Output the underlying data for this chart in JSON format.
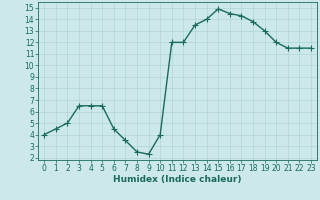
{
  "x": [
    0,
    1,
    2,
    3,
    4,
    5,
    6,
    7,
    8,
    9,
    10,
    11,
    12,
    13,
    14,
    15,
    16,
    17,
    18,
    19,
    20,
    21,
    22,
    23
  ],
  "y": [
    4.0,
    4.5,
    5.0,
    6.5,
    6.5,
    6.5,
    4.5,
    3.5,
    2.5,
    2.3,
    4.0,
    12.0,
    12.0,
    13.5,
    14.0,
    14.9,
    14.5,
    14.3,
    13.8,
    13.0,
    12.0,
    11.5,
    11.5,
    11.5
  ],
  "color": "#1a6b5a",
  "bg_color": "#cce8e8",
  "grid_color": "#b0d4d4",
  "xlabel": "Humidex (Indice chaleur)",
  "xlim": [
    -0.5,
    23.5
  ],
  "ylim": [
    1.8,
    15.5
  ],
  "yticks": [
    2,
    3,
    4,
    5,
    6,
    7,
    8,
    9,
    10,
    11,
    12,
    13,
    14,
    15
  ],
  "xticks": [
    0,
    1,
    2,
    3,
    4,
    5,
    6,
    7,
    8,
    9,
    10,
    11,
    12,
    13,
    14,
    15,
    16,
    17,
    18,
    19,
    20,
    21,
    22,
    23
  ],
  "xlabel_fontsize": 6.5,
  "tick_fontsize": 5.5,
  "linewidth": 1.0,
  "markersize": 2.0
}
